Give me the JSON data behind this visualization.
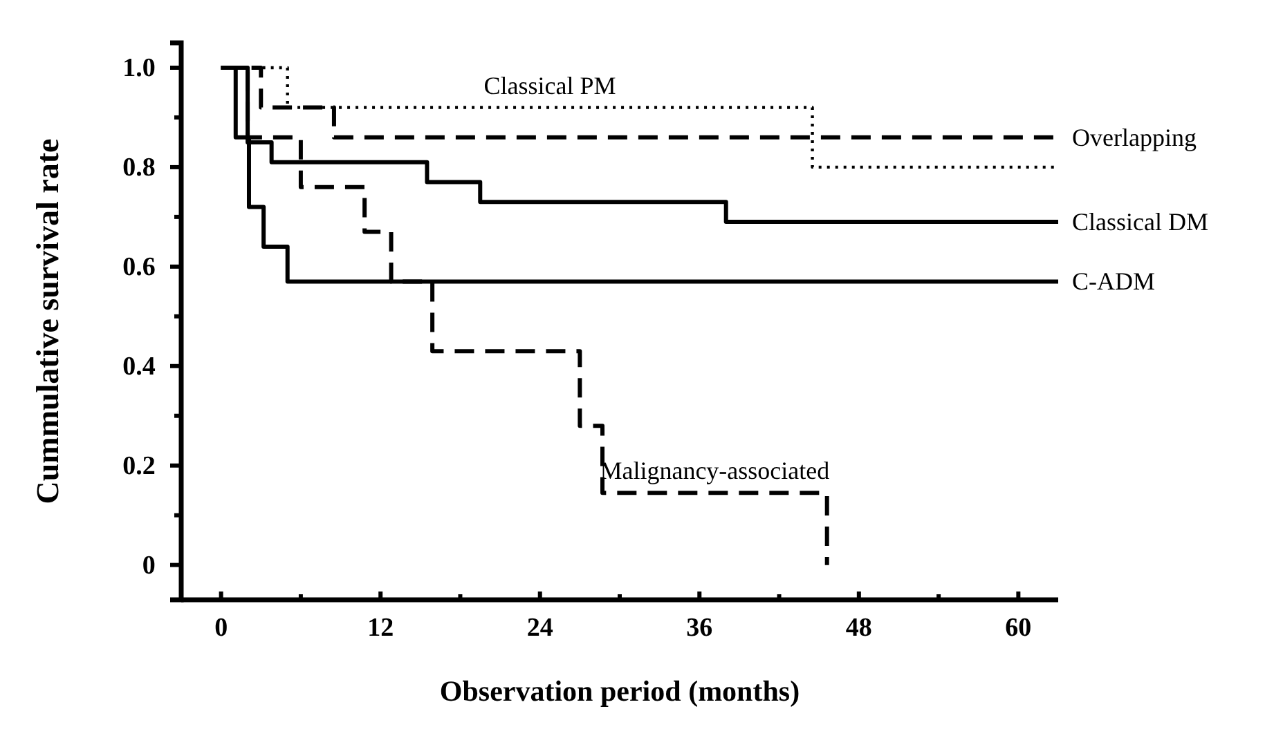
{
  "chart_data": {
    "type": "step",
    "xlabel": "Observation period (months)",
    "ylabel": "Cummulative survival rate",
    "xlim": [
      -3,
      63
    ],
    "ylim": [
      -0.07,
      1.05
    ],
    "xticks": [
      0,
      {
        "value": 6,
        "label": null
      },
      12,
      {
        "value": 18,
        "label": null
      },
      24,
      {
        "value": 30,
        "label": null
      },
      36,
      {
        "value": 42,
        "label": null
      },
      48,
      {
        "value": 54,
        "label": null
      },
      60
    ],
    "yticks": [
      0,
      {
        "value": 0.1,
        "label": null
      },
      0.2,
      {
        "value": 0.3,
        "label": null
      },
      0.4,
      {
        "value": 0.5,
        "label": null
      },
      0.6,
      {
        "value": 0.7,
        "label": null
      },
      0.8,
      {
        "value": 0.9,
        "label": null
      },
      {
        "value": 1,
        "label": "1.0"
      }
    ],
    "grid": false,
    "marker": "none",
    "series": [
      {
        "name": "Classical PM",
        "color": "#000000",
        "line_style": "dotted",
        "x": [
          0,
          5,
          44.5,
          63
        ],
        "values": [
          1.0,
          0.92,
          0.8,
          0.8
        ]
      },
      {
        "name": "Overlapping",
        "color": "#000000",
        "line_style": "dashed",
        "x": [
          0,
          3,
          8.5,
          63
        ],
        "values": [
          1.0,
          0.92,
          0.86,
          0.86
        ]
      },
      {
        "name": "Classical DM",
        "color": "#000000",
        "line_style": "solid",
        "x": [
          0,
          2,
          3.8,
          15.5,
          19.5,
          38,
          63
        ],
        "values": [
          1.0,
          0.85,
          0.81,
          0.77,
          0.73,
          0.69,
          0.69
        ]
      },
      {
        "name": "C-ADM",
        "color": "#000000",
        "line_style": "solid",
        "x": [
          0,
          1.1,
          2.1,
          3.2,
          5,
          63
        ],
        "values": [
          1.0,
          0.86,
          0.72,
          0.64,
          0.57,
          0.57
        ]
      },
      {
        "name": "Malignancy-associated",
        "color": "#000000",
        "line_style": "dashed",
        "x": [
          0,
          2,
          6,
          10.8,
          12.8,
          15.9,
          27,
          28.7,
          45.6
        ],
        "values": [
          1.0,
          0.86,
          0.76,
          0.67,
          0.57,
          0.43,
          0.28,
          0.145,
          0
        ]
      }
    ]
  }
}
